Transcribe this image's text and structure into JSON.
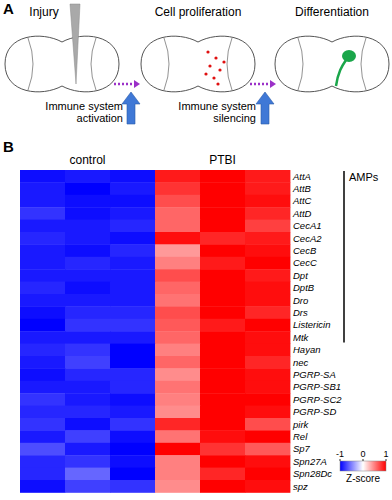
{
  "panel_a": {
    "label": "A",
    "steps": [
      "Injury",
      "Cell proliferation",
      "Differentiation"
    ],
    "arrows": [
      [
        "Immune system",
        "activation"
      ],
      [
        "Immune system",
        "silencing"
      ]
    ]
  },
  "chart_data": {
    "type": "heatmap",
    "panel_label": "B",
    "groups": [
      {
        "label": "control",
        "size": 3
      },
      {
        "label": "PTBI",
        "size": 3
      }
    ],
    "rows": [
      "AttA",
      "AttB",
      "AttC",
      "AttD",
      "CecA1",
      "CecA2",
      "CecB",
      "CecC",
      "Dpt",
      "DptB",
      "Dro",
      "Drs",
      "Listericin",
      "Mtk",
      "Hayan",
      "nec",
      "PGRP-SA",
      "PGRP-SB1",
      "PGRP-SC2",
      "PGRP-SD",
      "pirk",
      "Rel",
      "Sp7",
      "Spn27A",
      "Spn28Dc",
      "spz"
    ],
    "cells": [
      [
        -0.95,
        -0.9,
        -0.95,
        0.9,
        1.0,
        0.9
      ],
      [
        -0.9,
        -1.0,
        -0.9,
        0.8,
        1.0,
        0.9
      ],
      [
        -0.9,
        -0.95,
        -0.95,
        0.7,
        1.0,
        0.95
      ],
      [
        -0.8,
        -0.95,
        -0.9,
        0.6,
        1.0,
        0.85
      ],
      [
        -0.9,
        -0.9,
        -0.85,
        0.6,
        1.0,
        0.75
      ],
      [
        -0.85,
        -0.9,
        -0.95,
        0.95,
        0.85,
        0.9
      ],
      [
        -0.9,
        -0.95,
        -0.85,
        0.4,
        1.0,
        0.95
      ],
      [
        -0.9,
        -0.85,
        -0.9,
        0.5,
        0.9,
        1.0
      ],
      [
        -0.9,
        -0.9,
        -0.9,
        0.7,
        1.0,
        0.9
      ],
      [
        -0.85,
        -0.95,
        -0.9,
        0.6,
        1.0,
        0.95
      ],
      [
        -0.9,
        -0.9,
        -0.9,
        0.55,
        1.0,
        0.95
      ],
      [
        -0.95,
        -0.85,
        -0.85,
        0.7,
        1.0,
        0.85
      ],
      [
        -1.0,
        -0.8,
        -0.8,
        0.65,
        0.9,
        1.0
      ],
      [
        -0.9,
        -0.9,
        -0.9,
        0.6,
        1.0,
        0.95
      ],
      [
        -0.85,
        -0.8,
        -1.0,
        0.5,
        1.0,
        0.95
      ],
      [
        -0.9,
        -0.75,
        -1.0,
        0.6,
        1.0,
        0.85
      ],
      [
        -0.95,
        -0.85,
        -0.85,
        0.45,
        1.0,
        0.95
      ],
      [
        -0.9,
        -0.9,
        -0.85,
        0.55,
        1.0,
        0.95
      ],
      [
        -0.8,
        -0.9,
        -0.95,
        0.5,
        1.0,
        1.0
      ],
      [
        -0.85,
        -0.85,
        -0.9,
        0.45,
        1.0,
        0.95
      ],
      [
        -0.8,
        -0.95,
        -0.8,
        0.85,
        1.0,
        0.7
      ],
      [
        -0.9,
        -0.75,
        -0.95,
        0.55,
        0.95,
        1.0
      ],
      [
        -0.7,
        -0.9,
        -1.0,
        1.0,
        0.8,
        0.65
      ],
      [
        -0.85,
        -0.8,
        -0.95,
        0.5,
        1.0,
        0.95
      ],
      [
        -0.85,
        -0.6,
        -1.0,
        0.5,
        0.85,
        1.0
      ],
      [
        -0.95,
        -0.75,
        -0.8,
        0.45,
        1.0,
        0.95
      ]
    ],
    "annotations": [
      {
        "label": "AMPs",
        "from": 0,
        "to": 13
      }
    ],
    "colorbar": {
      "label": "Z-score",
      "range": [
        -1,
        1
      ],
      "ticks": [
        -1,
        0,
        1
      ],
      "colors": [
        "#0000ff",
        "#ffffff",
        "#ff0000"
      ]
    }
  }
}
